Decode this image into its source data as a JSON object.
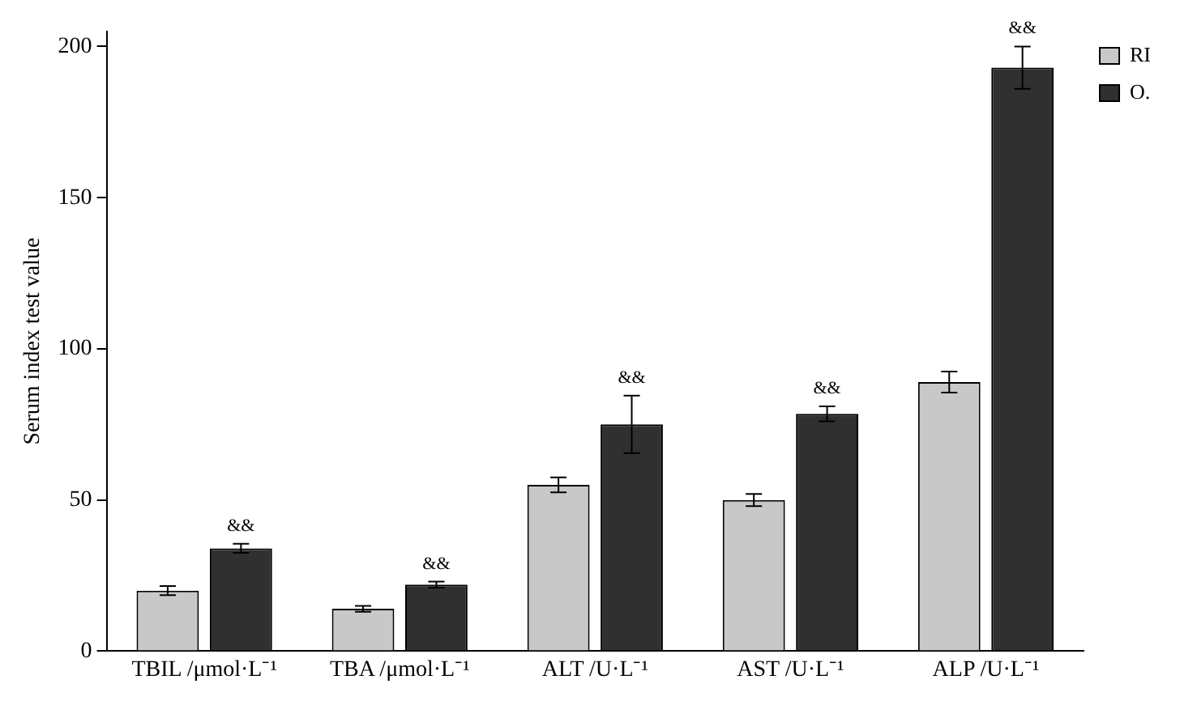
{
  "chart_data": {
    "type": "bar",
    "ylabel": "Serum index test value",
    "categories": [
      "TBIL /μmol·L⁻¹",
      "TBA /μmol·L⁻¹",
      "ALT /U·L⁻¹",
      "AST /U·L⁻¹",
      "ALP /U·L⁻¹"
    ],
    "series": [
      {
        "name": "RI",
        "color": "#c8c8c8",
        "values": [
          20,
          14,
          55,
          50,
          89
        ],
        "errors": [
          1.5,
          1,
          2.5,
          2,
          3.5
        ]
      },
      {
        "name": "O.",
        "color": "#303030",
        "values": [
          34,
          22,
          75,
          78.5,
          193
        ],
        "errors": [
          1.5,
          1,
          9.5,
          2.5,
          7
        ]
      }
    ],
    "ylim": [
      0,
      205
    ],
    "yticks": [
      0,
      50,
      100,
      150,
      200
    ],
    "grid": false,
    "legend": "top right",
    "annotations": [
      {
        "text": "&&",
        "x": "TBIL /μmol·L⁻¹",
        "y": 34
      },
      {
        "text": "&&",
        "x": "TBA /μmol·L⁻¹",
        "y": 22
      },
      {
        "text": "&&",
        "x": "ALT /U·L⁻¹",
        "y": 75
      },
      {
        "text": "&&",
        "x": "AST /U·L⁻¹",
        "y": 78.5
      },
      {
        "text": "&&",
        "x": "ALP /U·L⁻¹",
        "y": 193
      }
    ]
  }
}
